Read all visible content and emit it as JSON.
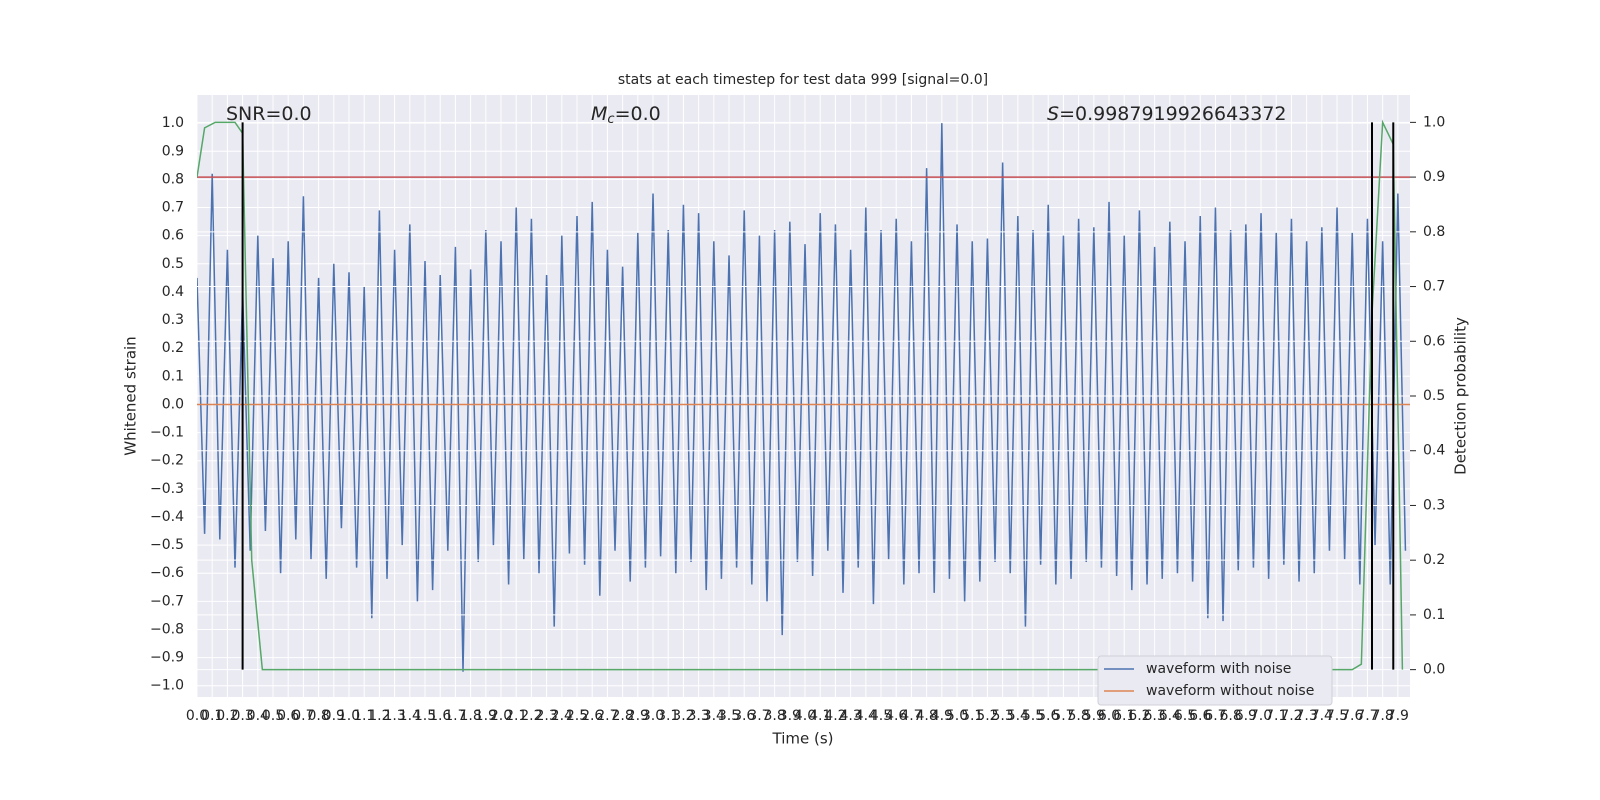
{
  "chart_data": {
    "type": "line",
    "title": "stats at each timestep for test data 999 [signal=0.0]",
    "xlabel": "Time (s)",
    "ylabel": "Whitened strain",
    "y2label": "Detection probability",
    "xlim": [
      0,
      7.98
    ],
    "ylim": [
      -1.04,
      1.1
    ],
    "y2lim": [
      -0.05,
      1.05
    ],
    "grid": true,
    "legend": "lower right",
    "xticks": [
      {
        "value": 0,
        "label": "0.0"
      },
      0.1,
      0.2,
      0.3,
      0.4,
      0.5,
      0.6,
      0.7,
      0.8,
      0.9,
      {
        "value": 1,
        "label": "1.0"
      },
      1.1,
      1.2,
      1.3,
      1.4,
      1.5,
      1.6,
      1.7,
      1.8,
      1.9,
      {
        "value": 2,
        "label": "2.0"
      },
      2.1,
      2.2,
      2.3,
      2.4,
      2.5,
      2.6,
      2.7,
      2.8,
      2.9,
      {
        "value": 3,
        "label": "3.0"
      },
      3.1,
      3.2,
      3.3,
      3.4,
      3.5,
      3.6,
      3.7,
      3.8,
      3.9,
      {
        "value": 4,
        "label": "4.0"
      },
      4.1,
      4.2,
      4.3,
      4.4,
      4.5,
      4.6,
      4.7,
      4.8,
      4.9,
      {
        "value": 5,
        "label": "5.0"
      },
      5.1,
      5.2,
      5.3,
      5.4,
      5.5,
      5.6,
      5.7,
      5.8,
      5.9,
      {
        "value": 6,
        "label": "6.0"
      },
      6.1,
      6.2,
      6.3,
      6.4,
      6.5,
      6.6,
      6.7,
      6.8,
      6.9,
      {
        "value": 7,
        "label": "7.0"
      },
      7.1,
      7.2,
      7.3,
      7.4,
      7.5,
      7.6,
      7.7,
      7.8,
      7.9
    ],
    "yticks": [
      {
        "value": -1,
        "label": "−1.0"
      },
      {
        "value": -0.9,
        "label": "−0.9"
      },
      {
        "value": -0.8,
        "label": "−0.8"
      },
      {
        "value": -0.7,
        "label": "−0.7"
      },
      {
        "value": -0.6,
        "label": "−0.6"
      },
      {
        "value": -0.5,
        "label": "−0.5"
      },
      {
        "value": -0.4,
        "label": "−0.4"
      },
      {
        "value": -0.3,
        "label": "−0.3"
      },
      {
        "value": -0.2,
        "label": "−0.2"
      },
      {
        "value": -0.1,
        "label": "−0.1"
      },
      {
        "value": 0,
        "label": "0.0"
      },
      0.1,
      0.2,
      0.3,
      0.4,
      0.5,
      0.6,
      0.7,
      0.8,
      0.9,
      {
        "value": 1,
        "label": "1.0"
      }
    ],
    "y2ticks": [
      {
        "value": 0,
        "label": "0.0"
      },
      0.1,
      0.2,
      0.3,
      0.4,
      0.5,
      0.6,
      0.7,
      0.8,
      0.9,
      {
        "value": 1,
        "label": "1.0"
      }
    ],
    "series": [
      {
        "name": "waveform with noise",
        "color": "#4c72b0",
        "x": [
          0,
          0.05,
          0.1,
          0.15,
          0.2,
          0.25,
          0.3,
          0.35,
          0.4,
          0.45,
          0.5,
          0.55,
          0.6,
          0.65,
          0.7,
          0.75,
          0.8,
          0.85,
          0.9,
          0.95,
          1,
          1.05,
          1.1,
          1.15,
          1.2,
          1.25,
          1.3,
          1.35,
          1.4,
          1.45,
          1.5,
          1.55,
          1.6,
          1.65,
          1.7,
          1.75,
          1.8,
          1.85,
          1.9,
          1.95,
          2,
          2.05,
          2.1,
          2.15,
          2.2,
          2.25,
          2.3,
          2.35,
          2.4,
          2.45,
          2.5,
          2.55,
          2.6,
          2.65,
          2.7,
          2.75,
          2.8,
          2.85,
          2.9,
          2.95,
          3,
          3.05,
          3.1,
          3.15,
          3.2,
          3.25,
          3.3,
          3.35,
          3.4,
          3.45,
          3.5,
          3.55,
          3.6,
          3.65,
          3.7,
          3.75,
          3.8,
          3.85,
          3.9,
          3.95,
          4,
          4.05,
          4.1,
          4.15,
          4.2,
          4.25,
          4.3,
          4.35,
          4.4,
          4.45,
          4.5,
          4.55,
          4.6,
          4.65,
          4.7,
          4.75,
          4.8,
          4.85,
          4.9,
          4.95,
          5,
          5.05,
          5.1,
          5.15,
          5.2,
          5.25,
          5.3,
          5.35,
          5.4,
          5.45,
          5.5,
          5.55,
          5.6,
          5.65,
          5.7,
          5.75,
          5.8,
          5.85,
          5.9,
          5.95,
          6,
          6.05,
          6.1,
          6.15,
          6.2,
          6.25,
          6.3,
          6.35,
          6.4,
          6.45,
          6.5,
          6.55,
          6.6,
          6.65,
          6.7,
          6.75,
          6.8,
          6.85,
          6.9,
          6.95,
          7,
          7.05,
          7.1,
          7.15,
          7.2,
          7.25,
          7.3,
          7.35,
          7.4,
          7.45,
          7.5,
          7.55,
          7.6,
          7.65,
          7.7,
          7.75,
          7.8,
          7.85,
          7.9,
          7.95
        ],
        "values": [
          0.45,
          -0.46,
          0.82,
          -0.48,
          0.55,
          -0.58,
          0.4,
          -0.52,
          0.6,
          -0.45,
          0.52,
          -0.6,
          0.58,
          -0.48,
          0.74,
          -0.55,
          0.45,
          -0.62,
          0.5,
          -0.44,
          0.47,
          -0.58,
          0.42,
          -0.76,
          0.69,
          -0.62,
          0.55,
          -0.5,
          0.64,
          -0.7,
          0.51,
          -0.66,
          0.46,
          -0.52,
          0.56,
          -0.95,
          0.48,
          -0.56,
          0.62,
          -0.5,
          0.58,
          -0.64,
          0.7,
          -0.55,
          0.66,
          -0.6,
          0.46,
          -0.79,
          0.6,
          -0.53,
          0.67,
          -0.57,
          0.72,
          -0.68,
          0.55,
          -0.52,
          0.49,
          -0.63,
          0.61,
          -0.58,
          0.75,
          -0.54,
          0.62,
          -0.6,
          0.71,
          -0.56,
          0.68,
          -0.66,
          0.58,
          -0.62,
          0.53,
          -0.58,
          0.69,
          -0.64,
          0.6,
          -0.7,
          0.62,
          -0.82,
          0.65,
          -0.56,
          0.57,
          -0.61,
          0.68,
          -0.52,
          0.64,
          -0.67,
          0.55,
          -0.58,
          0.7,
          -0.71,
          0.62,
          -0.55,
          0.66,
          -0.64,
          0.58,
          -0.6,
          0.84,
          -0.67,
          1.0,
          -0.62,
          0.64,
          -0.7,
          0.58,
          -0.63,
          0.59,
          -0.56,
          0.86,
          -0.6,
          0.67,
          -0.79,
          0.62,
          -0.57,
          0.71,
          -0.64,
          0.6,
          -0.62,
          0.66,
          -0.56,
          0.63,
          -0.58,
          0.72,
          -0.61,
          0.6,
          -0.66,
          0.69,
          -0.64,
          0.56,
          -0.62,
          0.65,
          -0.6,
          0.58,
          -0.63,
          0.67,
          -0.76,
          0.7,
          -0.77,
          0.62,
          -0.59,
          0.64,
          -0.58,
          0.68,
          -0.62,
          0.61,
          -0.57,
          0.66,
          -0.63,
          0.58,
          -0.6,
          0.63,
          -0.52,
          0.7,
          -0.55,
          0.61,
          -0.64,
          0.66,
          -0.5,
          0.58,
          -0.64,
          0.75,
          -0.52
        ]
      },
      {
        "name": "waveform without noise",
        "color": "#dd8452",
        "x": [
          0,
          7.98
        ],
        "values": [
          0,
          0
        ]
      },
      {
        "color": "#55a868",
        "axis": "y2",
        "x": [
          0,
          0.05,
          0.12,
          0.25,
          0.3,
          0.36,
          0.43,
          7.6,
          7.66,
          7.73,
          7.8,
          7.87,
          7.93
        ],
        "values": [
          0.9,
          0.99,
          1.0,
          1.0,
          0.98,
          0.2,
          0.0,
          0.0,
          0.01,
          0.65,
          1.0,
          0.96,
          0.0
        ]
      }
    ],
    "hlines": [
      {
        "value": 0.9,
        "axis": "y2",
        "color": "#c44e52"
      }
    ],
    "vlines": {
      "x": [
        0.3,
        7.73,
        7.87
      ],
      "y2span": [
        0,
        1
      ],
      "color": "#000000"
    },
    "annotations": [
      {
        "text": "SNR=0.0"
      },
      {
        "symbol": "M",
        "sub": "c",
        "text": "=0.0"
      },
      {
        "symbol": "S",
        "text": "=0.9987919926643372"
      }
    ]
  }
}
